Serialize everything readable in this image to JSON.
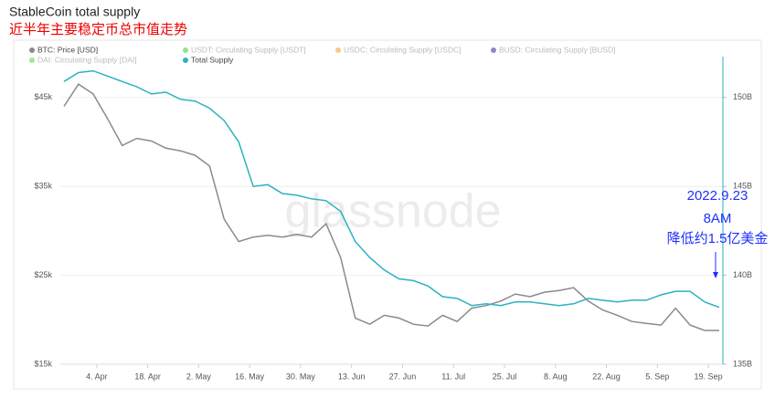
{
  "chart_data": {
    "type": "line",
    "title": "StableCoin total supply",
    "subtitle": "近半年主要稳定币总市值走势",
    "watermark": "glassnode",
    "x": [
      "26. Mar",
      "30. Mar",
      "3. Apr",
      "7. Apr",
      "11. Apr",
      "15. Apr",
      "19. Apr",
      "23. Apr",
      "27. Apr",
      "1. May",
      "5. May",
      "9. May",
      "13. May",
      "17. May",
      "21. May",
      "25. May",
      "29. May",
      "2. Jun",
      "6. Jun",
      "10. Jun",
      "14. Jun",
      "18. Jun",
      "22. Jun",
      "26. Jun",
      "30. Jun",
      "4. Jul",
      "8. Jul",
      "12. Jul",
      "16. Jul",
      "20. Jul",
      "24. Jul",
      "28. Jul",
      "1. Aug",
      "5. Aug",
      "9. Aug",
      "13. Aug",
      "17. Aug",
      "21. Aug",
      "25. Aug",
      "29. Aug",
      "2. Sep",
      "6. Sep",
      "10. Sep",
      "14. Sep",
      "18. Sep",
      "22. Sep"
    ],
    "xlim": [
      "25. Mar",
      "23. Sep"
    ],
    "xticks": [
      "4. Apr",
      "18. Apr",
      "2. May",
      "16. May",
      "30. May",
      "13. Jun",
      "27. Jun",
      "11. Jul",
      "25. Jul",
      "8. Aug",
      "22. Aug",
      "5. Sep",
      "19. Sep"
    ],
    "ylim": [
      15000,
      49600
    ],
    "yticks": [
      {
        "value": 15000,
        "label": "$15k"
      },
      {
        "value": 25000,
        "label": "$25k"
      },
      {
        "value": 35000,
        "label": "$35k"
      },
      {
        "value": 45000,
        "label": "$45k"
      }
    ],
    "y2lim": [
      135,
      152.3
    ],
    "y2ticks": [
      {
        "value": 135,
        "label": "135B"
      },
      {
        "value": 140,
        "label": "140B"
      },
      {
        "value": 145,
        "label": "145B"
      },
      {
        "value": 150,
        "label": "150B"
      }
    ],
    "grid": true,
    "series": [
      {
        "name": "BTC: Price [USD]",
        "color": "#8a8a8a",
        "axis": "y",
        "values": [
          44000,
          46500,
          45400,
          42600,
          39600,
          40400,
          40100,
          39300,
          39000,
          38500,
          37300,
          31300,
          28800,
          29300,
          29500,
          29300,
          29600,
          29300,
          30800,
          27000,
          20200,
          19500,
          20500,
          20200,
          19500,
          19300,
          20500,
          19800,
          21300,
          21600,
          22100,
          22900,
          22600,
          23100,
          23300,
          23600,
          22100,
          21100,
          20500,
          19800,
          19600,
          19400,
          21300,
          19400,
          18800,
          18800
        ]
      },
      {
        "name": "Total Supply",
        "color": "#2ab3c0",
        "axis": "y2",
        "values": [
          150.9,
          151.4,
          151.5,
          151.2,
          150.9,
          150.6,
          150.2,
          150.3,
          149.9,
          149.8,
          149.4,
          148.7,
          147.5,
          145.0,
          145.1,
          144.6,
          144.5,
          144.3,
          144.2,
          143.6,
          141.9,
          141.0,
          140.3,
          139.8,
          139.7,
          139.4,
          138.8,
          138.7,
          138.3,
          138.4,
          138.3,
          138.5,
          138.5,
          138.4,
          138.3,
          138.4,
          138.7,
          138.6,
          138.5,
          138.6,
          138.6,
          138.9,
          139.1,
          139.1,
          138.5,
          138.2
        ]
      }
    ],
    "legend_inactive": [
      {
        "name": "USDT: Circulating Supply [USDT]",
        "color": "#3cc83c"
      },
      {
        "name": "USDC: Circulating Supply [USDC]",
        "color": "#f0a020"
      },
      {
        "name": "BUSD: Circulating Supply [BUSD]",
        "color": "#2828a0"
      },
      {
        "name": "DAI: Circulating Supply [DAI]",
        "color": "#66cc33"
      }
    ],
    "annotations": [
      "2022.9.23",
      "8AM",
      "降低约1.5亿美金"
    ],
    "annotation_color": "#1f2fff"
  }
}
